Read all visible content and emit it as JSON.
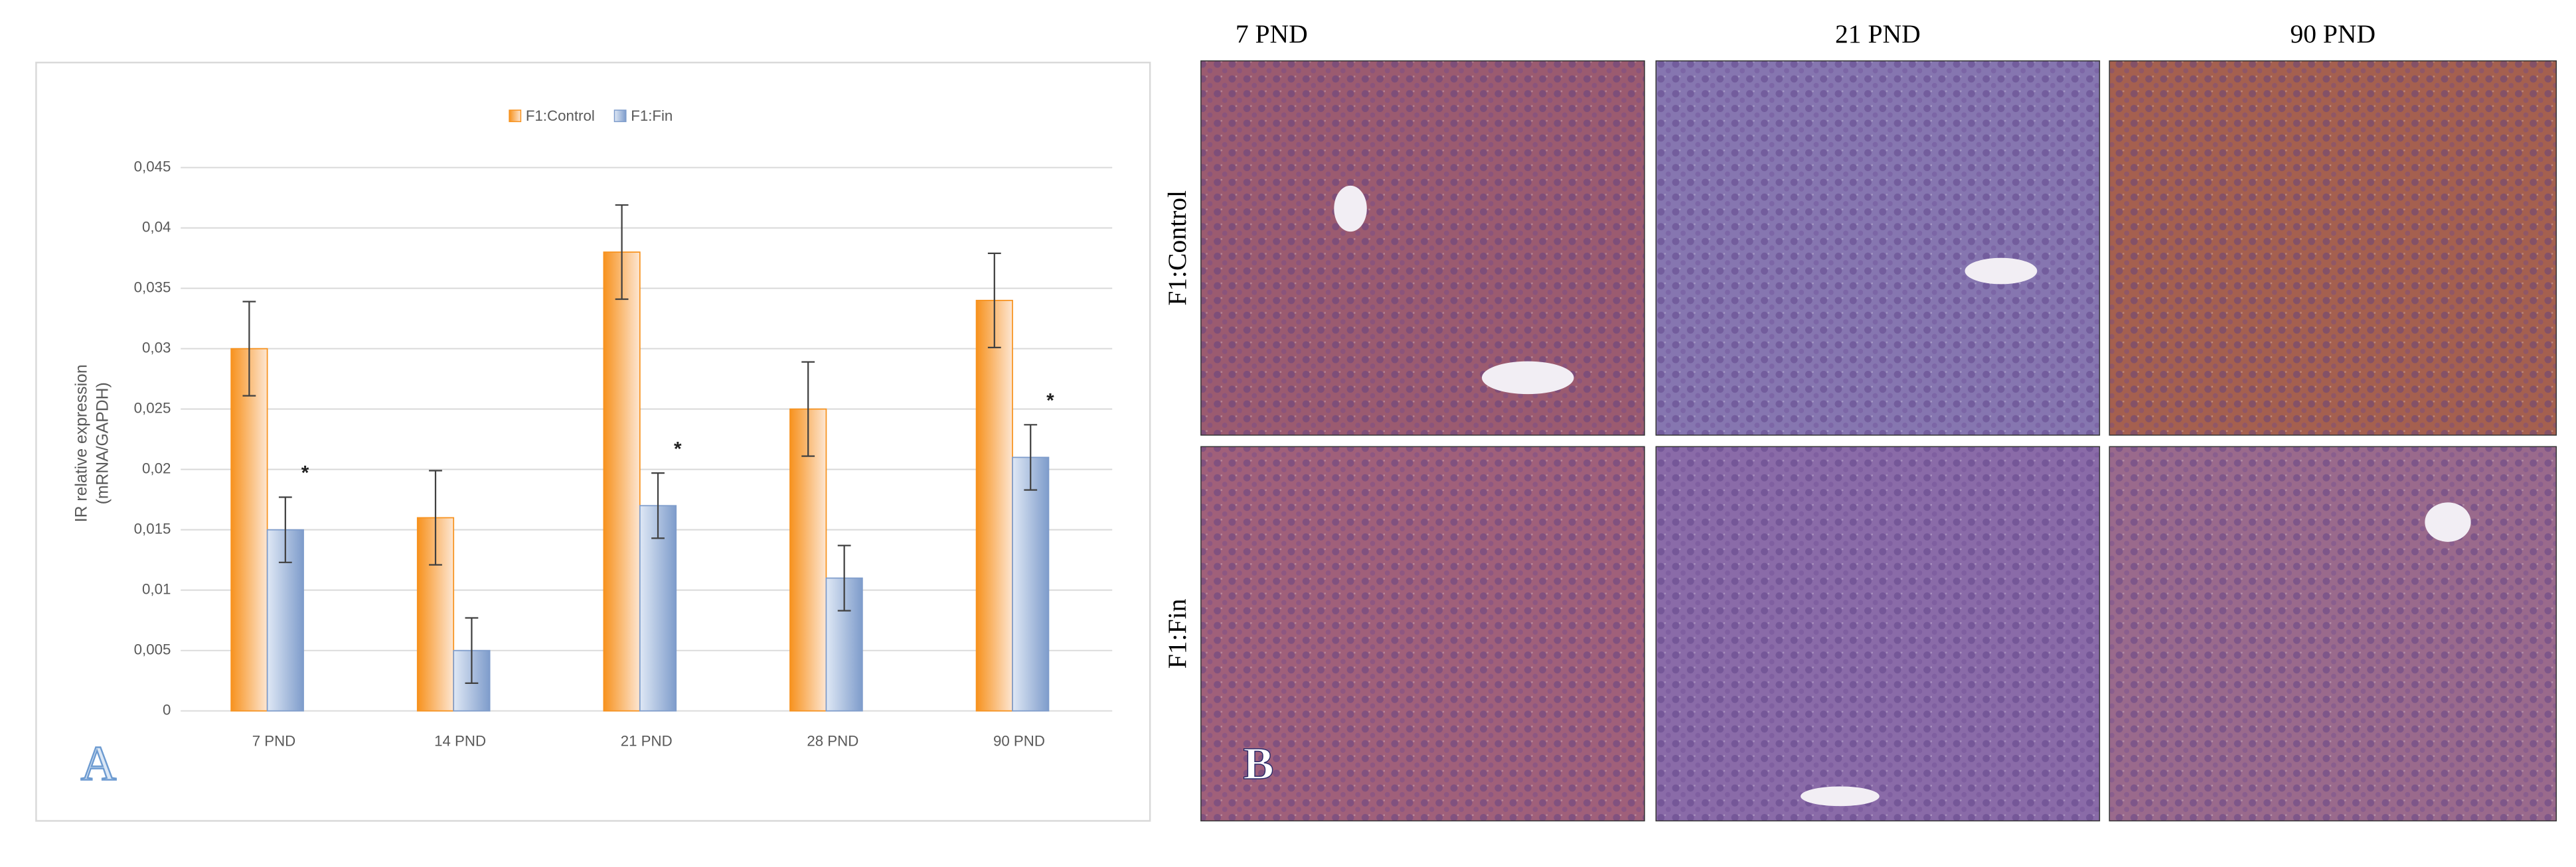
{
  "chart_data": {
    "type": "bar",
    "panel_label": "A",
    "y_label": [
      "IR relative expression",
      "(mRNA/GAPDH)"
    ],
    "categories": [
      "7 PND",
      "14 PND",
      "21 PND",
      "28 PND",
      "90 PND"
    ],
    "series": [
      {
        "name": "F1:Control",
        "color": "#f7921e",
        "values": [
          0.03,
          0.016,
          0.038,
          0.025,
          0.034
        ],
        "errors": [
          0.0039,
          0.0039,
          0.0039,
          0.0039,
          0.0039
        ]
      },
      {
        "name": "F1:Fin",
        "color": "#7e9ccb",
        "values": [
          0.015,
          0.005,
          0.017,
          0.011,
          0.021
        ],
        "errors": [
          0.0027,
          0.0027,
          0.0027,
          0.0027,
          0.0027
        ],
        "markers": [
          "*",
          null,
          "*",
          null,
          "*"
        ]
      }
    ],
    "ylim": [
      0,
      0.045
    ],
    "yticks": [
      0,
      {
        "value": 0.005,
        "label": "0,005"
      },
      {
        "value": 0.01,
        "label": "0,01"
      },
      {
        "value": 0.015,
        "label": "0,015"
      },
      {
        "value": 0.02,
        "label": "0,02"
      },
      {
        "value": 0.025,
        "label": "0,025"
      },
      {
        "value": 0.03,
        "label": "0,03"
      },
      {
        "value": 0.035,
        "label": "0,035"
      },
      {
        "value": 0.04,
        "label": "0,04"
      },
      {
        "value": 0.045,
        "label": "0,045"
      }
    ],
    "grid": true,
    "legend": "top"
  },
  "panel_b": {
    "label": "B",
    "column_titles": [
      "7 PND",
      "21 PND",
      "90 PND"
    ],
    "row_labels": [
      "F1:Control",
      "F1:Fin"
    ]
  }
}
